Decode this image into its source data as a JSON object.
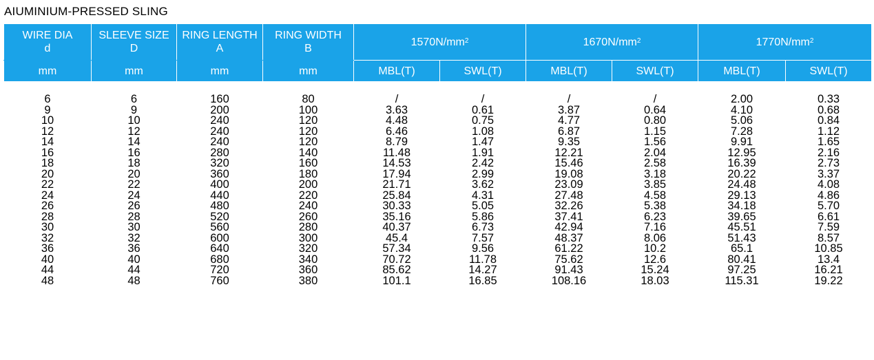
{
  "title": "AIUMINIUM-PRESSED SLING",
  "header": {
    "wire_dia": {
      "label": "WIRE DIA",
      "symbol": "d",
      "unit": "mm"
    },
    "sleeve_size": {
      "label": "SLEEVE SIZE",
      "symbol": "D",
      "unit": "mm"
    },
    "ring_length": {
      "label": "RING LENGTH",
      "symbol": "A",
      "unit": "mm"
    },
    "ring_width": {
      "label": "RING WIDTH",
      "symbol": "B",
      "unit": "mm"
    },
    "grades": [
      {
        "value": "1570N/mm",
        "exp": "2",
        "mbl": "MBL(T)",
        "swl": "SWL(T)"
      },
      {
        "value": "1670N/mm",
        "exp": "2",
        "mbl": "MBL(T)",
        "swl": "SWL(T)"
      },
      {
        "value": "1770N/mm",
        "exp": "2",
        "mbl": "MBL(T)",
        "swl": "SWL(T)"
      }
    ]
  },
  "rows": [
    [
      "6",
      "6",
      "160",
      "80",
      "/",
      "/",
      "/",
      "/",
      "2.00",
      "0.33"
    ],
    [
      "9",
      "9",
      "200",
      "100",
      "3.63",
      "0.61",
      "3.87",
      "0.64",
      "4.10",
      "0.68"
    ],
    [
      "10",
      "10",
      "240",
      "120",
      "4.48",
      "0.75",
      "4.77",
      "0.80",
      "5.06",
      "0.84"
    ],
    [
      "12",
      "12",
      "240",
      "120",
      "6.46",
      "1.08",
      "6.87",
      "1.15",
      "7.28",
      "1.12"
    ],
    [
      "14",
      "14",
      "240",
      "120",
      "8.79",
      "1.47",
      "9.35",
      "1.56",
      "9.91",
      "1.65"
    ],
    [
      "16",
      "16",
      "280",
      "140",
      "11.48",
      "1.91",
      "12.21",
      "2.04",
      "12.95",
      "2.16"
    ],
    [
      "18",
      "18",
      "320",
      "160",
      "14.53",
      "2.42",
      "15.46",
      "2.58",
      "16.39",
      "2.73"
    ],
    [
      "20",
      "20",
      "360",
      "180",
      "17.94",
      "2.99",
      "19.08",
      "3.18",
      "20.22",
      "3.37"
    ],
    [
      "22",
      "22",
      "400",
      "200",
      "21.71",
      "3.62",
      "23.09",
      "3.85",
      "24.48",
      "4.08"
    ],
    [
      "24",
      "24",
      "440",
      "220",
      "25.84",
      "4.31",
      "27.48",
      "4.58",
      "29.13",
      "4.86"
    ],
    [
      "26",
      "26",
      "480",
      "240",
      "30.33",
      "5.05",
      "32.26",
      "5.38",
      "34.18",
      "5.70"
    ],
    [
      "28",
      "28",
      "520",
      "260",
      "35.16",
      "5.86",
      "37.41",
      "6.23",
      "39.65",
      "6.61"
    ],
    [
      "30",
      "30",
      "560",
      "280",
      "40.37",
      "6.73",
      "42.94",
      "7.16",
      "45.51",
      "7.59"
    ],
    [
      "32",
      "32",
      "600",
      "300",
      "45.4",
      "7.57",
      "48.37",
      "8.06",
      "51.43",
      "8.57"
    ],
    [
      "36",
      "36",
      "640",
      "320",
      "57.34",
      "9.56",
      "61.22",
      "10.2",
      "65.1",
      "10.85"
    ],
    [
      "40",
      "40",
      "680",
      "340",
      "70.72",
      "11.78",
      "75.62",
      "12.6",
      "80.41",
      "13.4"
    ],
    [
      "44",
      "44",
      "720",
      "360",
      "85.62",
      "14.27",
      "91.43",
      "15.24",
      "97.25",
      "16.21"
    ],
    [
      "48",
      "48",
      "760",
      "380",
      "101.1",
      "16.85",
      "108.16",
      "18.03",
      "115.31",
      "19.22"
    ]
  ]
}
